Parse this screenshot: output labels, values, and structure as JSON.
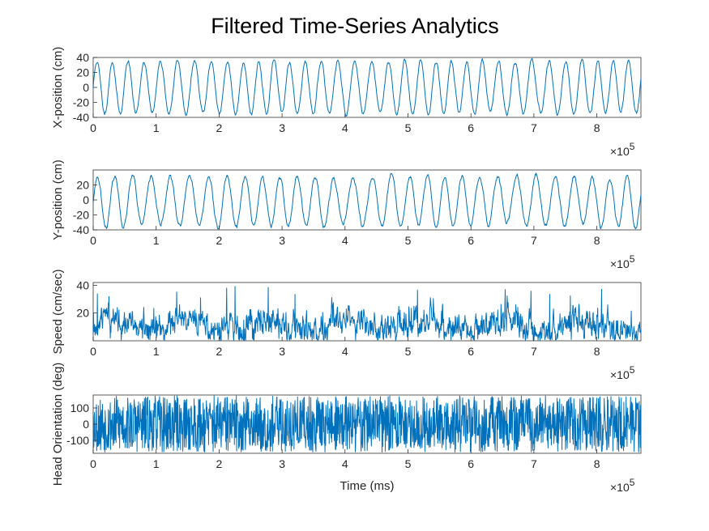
{
  "figure": {
    "title": "Filtered Time-Series Analytics"
  },
  "chart_data": [
    {
      "type": "line",
      "ylabel": "X-position (cm)",
      "xlabel": "",
      "xlim": [
        0,
        870000
      ],
      "ylim": [
        -40,
        40
      ],
      "x_ticks": [
        0,
        1,
        2,
        3,
        4,
        5,
        6,
        7,
        8
      ],
      "y_ticks": [
        -40,
        -20,
        0,
        20,
        40
      ],
      "exponent_label": "×10",
      "exponent_power": "5",
      "series": [
        {
          "signal": "oscillating",
          "cycles": 34,
          "amplitude": 35,
          "offset": 0,
          "noise": 6,
          "seed": 11,
          "values": []
        }
      ],
      "color": "#0072BD"
    },
    {
      "type": "line",
      "ylabel": "Y-position (cm)",
      "xlabel": "",
      "xlim": [
        0,
        870000
      ],
      "ylim": [
        -40,
        40
      ],
      "x_ticks": [
        0,
        1,
        2,
        3,
        4,
        5,
        6,
        7,
        8
      ],
      "y_ticks": [
        -40,
        -20,
        0,
        20
      ],
      "exponent_label": "×10",
      "exponent_power": "5",
      "series": [
        {
          "signal": "oscillating",
          "cycles": 30,
          "amplitude": 33,
          "offset": -2,
          "noise": 7,
          "seed": 23,
          "values": []
        }
      ],
      "color": "#0072BD"
    },
    {
      "type": "line",
      "ylabel": "Speed (cm/sec)",
      "xlabel": "",
      "xlim": [
        0,
        870000
      ],
      "ylim": [
        0,
        42
      ],
      "x_ticks": [
        0,
        1,
        2,
        3,
        4,
        5,
        6,
        7,
        8
      ],
      "y_ticks": [
        20,
        40
      ],
      "exponent_label": "×10",
      "exponent_power": "5",
      "series": [
        {
          "signal": "noise-positive",
          "mean": 11,
          "spread": 12,
          "max": 41,
          "seed": 37,
          "values": []
        }
      ],
      "color": "#0072BD"
    },
    {
      "type": "line",
      "ylabel": "Head Orientation (deg)",
      "xlabel": "Time (ms)",
      "xlim": [
        0,
        870000
      ],
      "ylim": [
        -180,
        180
      ],
      "x_ticks": [
        0,
        1,
        2,
        3,
        4,
        5,
        6,
        7,
        8
      ],
      "y_ticks": [
        -100,
        0,
        100
      ],
      "exponent_label": "×10",
      "exponent_power": "5",
      "series": [
        {
          "signal": "noise-wide",
          "amplitude": 175,
          "seed": 53,
          "values": []
        }
      ],
      "color": "#0072BD"
    }
  ]
}
